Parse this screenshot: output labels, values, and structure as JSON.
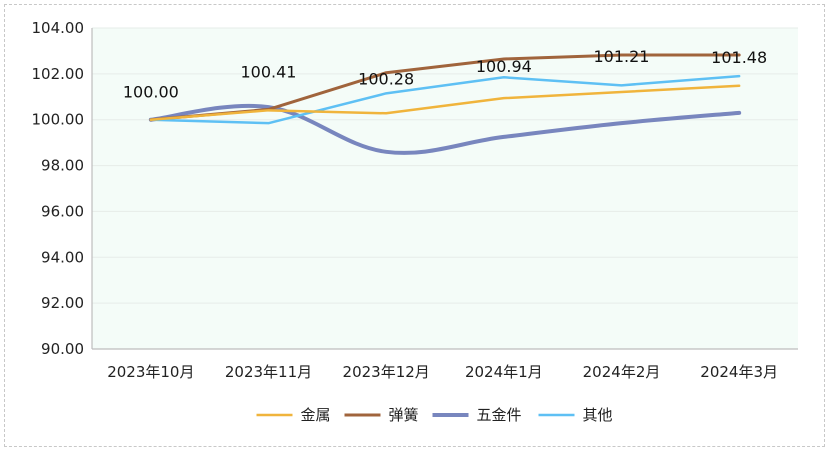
{
  "chart_data": {
    "type": "line",
    "title": "",
    "xlabel": "",
    "ylabel": "",
    "categories": [
      "2023年10月",
      "2023年11月",
      "2023年12月",
      "2024年1月",
      "2024年2月",
      "2024年3月"
    ],
    "ylim": [
      90,
      104
    ],
    "yticks": [
      "90.00",
      "92.00",
      "94.00",
      "96.00",
      "98.00",
      "100.00",
      "102.00",
      "104.00"
    ],
    "grid": true,
    "legend_position": "bottom",
    "plot_background": "#f4fcf8",
    "series": [
      {
        "name": "金属",
        "color": "#f0b43c",
        "width": 2.5,
        "smooth": false,
        "values": [
          100.0,
          100.41,
          100.28,
          100.94,
          101.21,
          101.48
        ]
      },
      {
        "name": "弹簧",
        "color": "#a0643c",
        "width": 3,
        "smooth": false,
        "values": [
          100.0,
          100.45,
          102.05,
          102.65,
          102.82,
          102.82
        ]
      },
      {
        "name": "五金件",
        "color": "#7886be",
        "width": 4,
        "smooth": true,
        "values": [
          100.0,
          100.55,
          98.6,
          99.25,
          99.85,
          100.3
        ]
      },
      {
        "name": "其他",
        "color": "#5ec0f4",
        "width": 2.5,
        "smooth": false,
        "values": [
          100.0,
          99.85,
          101.15,
          101.85,
          101.5,
          101.9
        ]
      }
    ],
    "data_labels": {
      "series": "金属",
      "values": [
        "100.00",
        "100.41",
        "100.28",
        "100.94",
        "101.21",
        "101.48"
      ]
    }
  }
}
